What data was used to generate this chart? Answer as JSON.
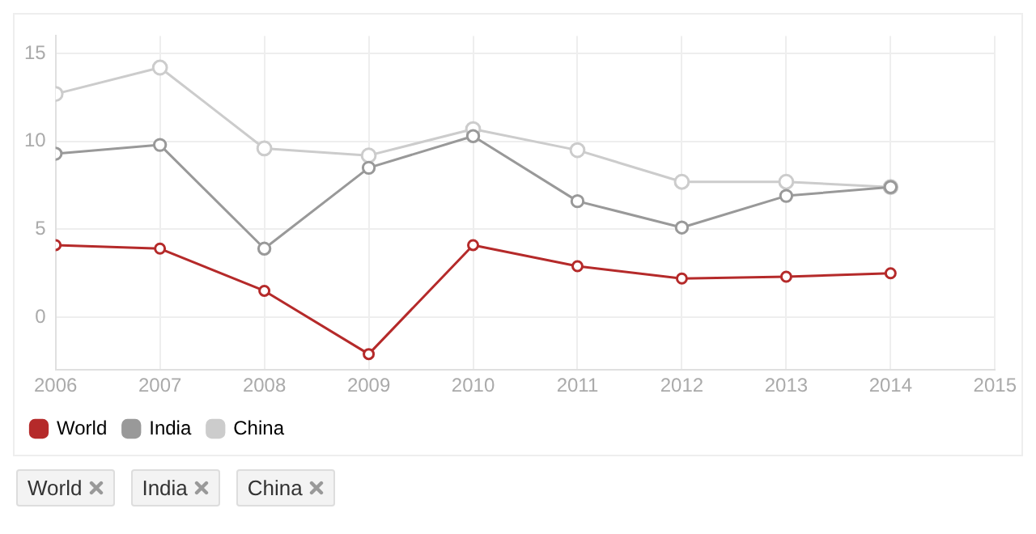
{
  "chart_data": {
    "type": "line",
    "x": [
      2006,
      2007,
      2008,
      2009,
      2010,
      2011,
      2012,
      2013,
      2014
    ],
    "series": [
      {
        "name": "World",
        "color": "#b52a2a",
        "values": [
          4.1,
          3.9,
          1.5,
          -2.1,
          4.1,
          2.9,
          2.2,
          2.3,
          2.5
        ]
      },
      {
        "name": "India",
        "color": "#999999",
        "values": [
          9.3,
          9.8,
          3.9,
          8.5,
          10.3,
          6.6,
          5.1,
          6.9,
          7.4
        ]
      },
      {
        "name": "China",
        "color": "#cccccc",
        "values": [
          12.7,
          14.2,
          9.6,
          9.2,
          10.7,
          9.5,
          7.7,
          7.7,
          7.4
        ]
      }
    ],
    "xlim": [
      2006,
      2015
    ],
    "xticks": [
      2006,
      2007,
      2008,
      2009,
      2010,
      2011,
      2012,
      2013,
      2014,
      2015
    ],
    "ylim": [
      -3,
      16
    ],
    "yticks": [
      0,
      5,
      10,
      15
    ],
    "grid": true,
    "legend": "bottom left",
    "marker": "circle",
    "line_style": "solid"
  }
}
